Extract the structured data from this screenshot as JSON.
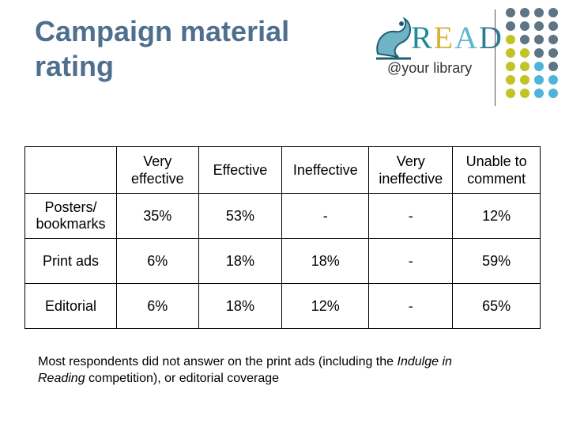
{
  "title": "Campaign material rating",
  "logo": {
    "word": [
      "R",
      "E",
      "A",
      "D"
    ],
    "tagline": "@your library"
  },
  "table": {
    "headers": [
      "",
      "Very effective",
      "Effective",
      "Ineffective",
      "Very ineffective",
      "Unable to comment"
    ],
    "rows": [
      [
        "Posters/ bookmarks",
        "35%",
        "53%",
        "-",
        "-",
        "12%"
      ],
      [
        "Print ads",
        "6%",
        "18%",
        "18%",
        "-",
        "59%"
      ],
      [
        "Editorial",
        "6%",
        "18%",
        "12%",
        "-",
        "65%"
      ]
    ]
  },
  "note": {
    "text_before": "Most respondents did not answer on the print ads (including the ",
    "italic": "Indulge in Reading",
    "text_after": " competition), or editorial coverage"
  },
  "colors": {
    "title": "#4f6f8f",
    "dot_gray": "#5e7584",
    "dot_yellow": "#c2c324",
    "dot_blue": "#4fb4d8"
  }
}
